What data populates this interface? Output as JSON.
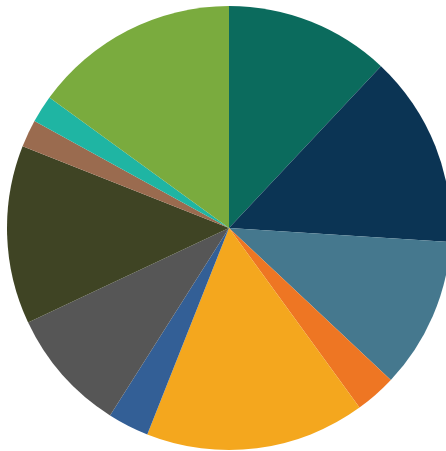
{
  "chart_data": {
    "type": "pie",
    "values": [
      12,
      14,
      11,
      3,
      16,
      3,
      9,
      13,
      2,
      2,
      15
    ],
    "colors": [
      "#0b6b5d",
      "#0b3454",
      "#45788e",
      "#ee7623",
      "#f4a71e",
      "#335f96",
      "#565656",
      "#3f4424",
      "#9a6b4f",
      "#1fb5a3",
      "#7aab3e"
    ],
    "data_labels": false
  }
}
